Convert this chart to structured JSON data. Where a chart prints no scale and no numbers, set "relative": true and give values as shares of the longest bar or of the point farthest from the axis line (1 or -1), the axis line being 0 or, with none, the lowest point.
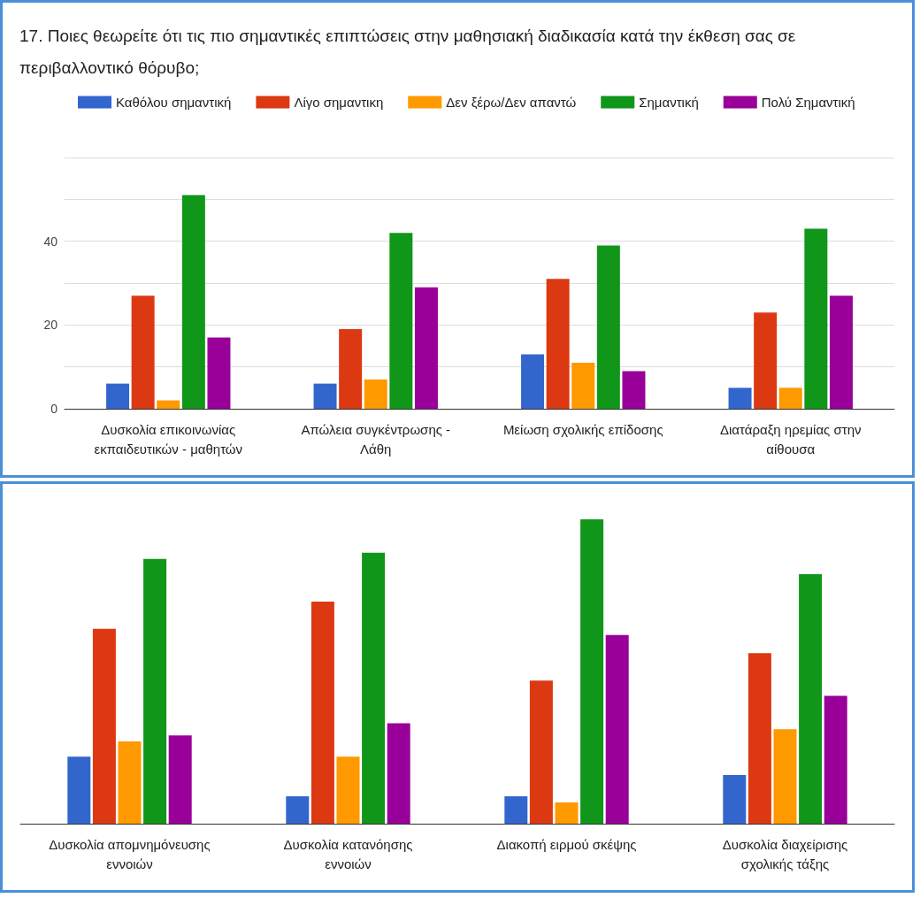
{
  "chart_data": [
    {
      "type": "bar",
      "title": "17. Ποιες θεωρείτε ότι τις πιο σημαντικές επιπτώσεις στην μαθησιακή διαδικασία κατά την έκθεση σας σε περιβαλλοντικό θόρυβο;",
      "categories": [
        "Δυσκολία επικοινωνίας εκπαιδευτικών - μαθητών",
        "Απώλεια συγκέντρωσης - Λάθη",
        "Μείωση σχολικής επίδοσης",
        "Διατάραξη ηρεμίας στην αίθουσα"
      ],
      "series": [
        {
          "name": "Καθόλου σημαντική",
          "color": "#3366cc",
          "values": [
            6,
            6,
            13,
            5
          ]
        },
        {
          "name": "Λίγο σημαντικη",
          "color": "#dc3912",
          "values": [
            27,
            19,
            31,
            23
          ]
        },
        {
          "name": "Δεν ξέρω/Δεν απαντώ",
          "color": "#ff9900",
          "values": [
            2,
            7,
            11,
            5
          ]
        },
        {
          "name": "Σημαντική",
          "color": "#109618",
          "values": [
            51,
            42,
            39,
            43
          ]
        },
        {
          "name": "Πολύ Σημαντική",
          "color": "#990099",
          "values": [
            17,
            29,
            9,
            27
          ]
        }
      ],
      "ylim": [
        0,
        60
      ],
      "yticks": [
        0,
        {
          "value": 10,
          "label": null
        },
        20,
        {
          "value": 30,
          "label": null
        },
        40,
        {
          "value": 50,
          "label": null
        },
        {
          "value": 60,
          "label": null
        }
      ],
      "grid": "y",
      "legend": "top"
    },
    {
      "type": "bar",
      "categories": [
        "Δυσκολία απομνημόνευσης εννοιών",
        "Δυσκολία κατανόησης εννοιών",
        "Διακοπή ειρμού σκέψης",
        "Δυσκολία διαχείρισης σχολικής τάξης"
      ],
      "series": [
        {
          "color": "#3366cc",
          "values": [
            0.22,
            0.09,
            0.09,
            0.16
          ]
        },
        {
          "color": "#dc3912",
          "values": [
            0.64,
            0.73,
            0.47,
            0.56
          ]
        },
        {
          "color": "#ff9900",
          "values": [
            0.27,
            0.22,
            0.07,
            0.31
          ]
        },
        {
          "color": "#109618",
          "values": [
            0.87,
            0.89,
            1,
            0.82
          ]
        },
        {
          "color": "#990099",
          "values": [
            0.29,
            0.33,
            0.62,
            0.42
          ]
        }
      ],
      "relative": true
    }
  ]
}
